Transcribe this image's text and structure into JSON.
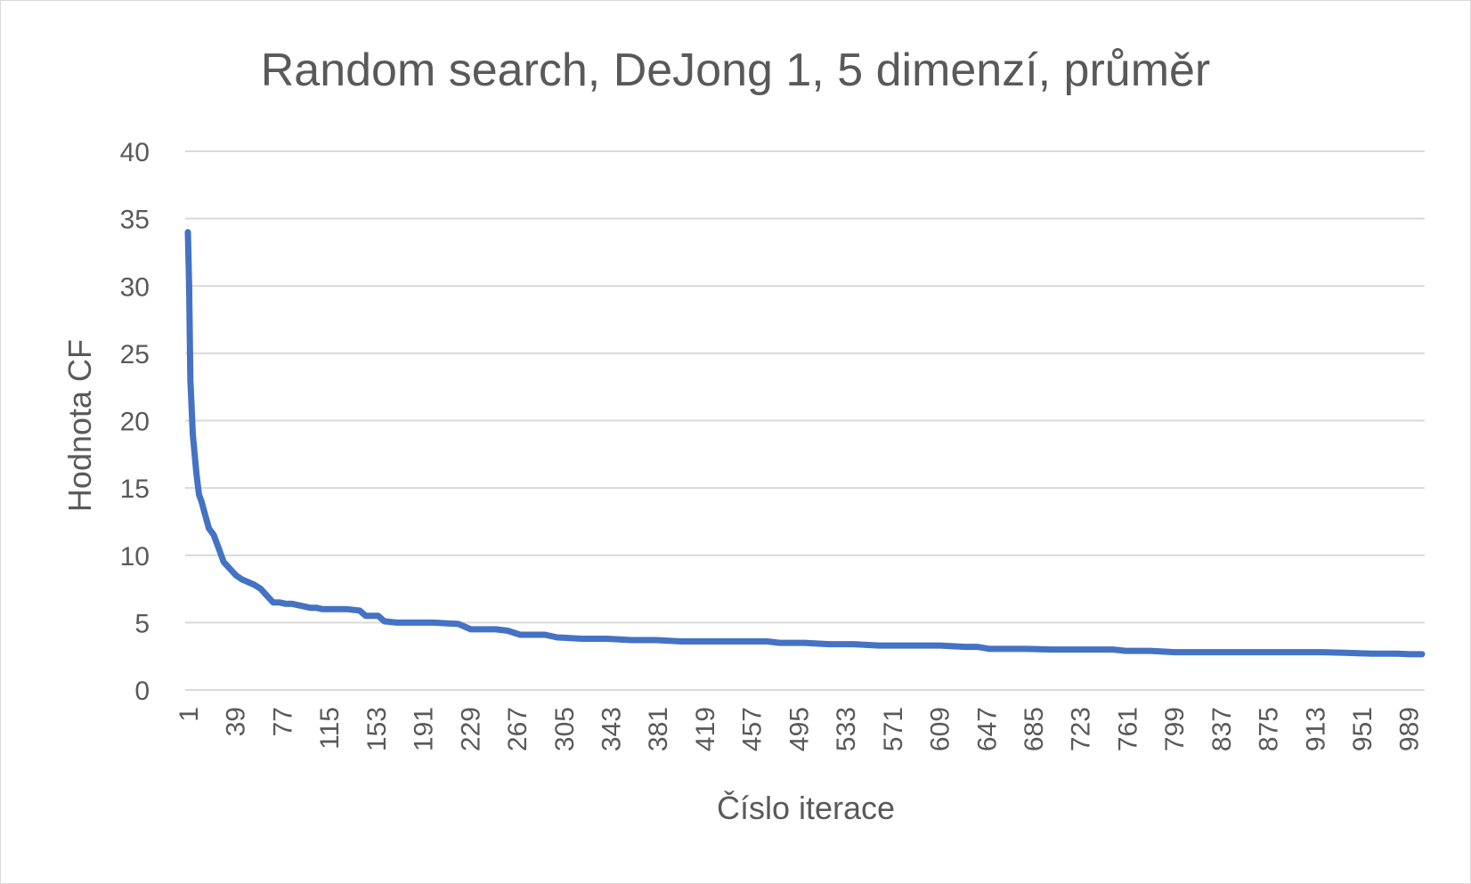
{
  "chart_data": {
    "type": "line",
    "title": "Random search, DeJong 1, 5 dimenzí, průměr",
    "xlabel": "Číslo iterace",
    "ylabel": "Hodnota CF",
    "ylim": [
      0,
      40
    ],
    "y_ticks": [
      "0",
      "5",
      "10",
      "15",
      "20",
      "25",
      "30",
      "35",
      "40"
    ],
    "x_ticks": [
      "1",
      "39",
      "77",
      "115",
      "153",
      "191",
      "229",
      "267",
      "305",
      "343",
      "381",
      "419",
      "457",
      "495",
      "533",
      "571",
      "609",
      "647",
      "685",
      "723",
      "761",
      "799",
      "837",
      "875",
      "913",
      "951",
      "989"
    ],
    "xlim": [
      1,
      1000
    ],
    "grid": true,
    "legend": "none",
    "series_color": "#4472c4",
    "series": [
      {
        "x": [
          1,
          2,
          3,
          4,
          5,
          6,
          8,
          10,
          12,
          15,
          18,
          22,
          26,
          30,
          35,
          40,
          45,
          50,
          55,
          60,
          65,
          70,
          75,
          80,
          85,
          95,
          100,
          105,
          110,
          115,
          120,
          130,
          140,
          145,
          150,
          155,
          160,
          170,
          180,
          200,
          220,
          230,
          250,
          260,
          270,
          280,
          290,
          300,
          320,
          340,
          360,
          380,
          400,
          420,
          450,
          470,
          480,
          500,
          520,
          540,
          560,
          580,
          610,
          630,
          640,
          650,
          680,
          700,
          720,
          740,
          750,
          760,
          780,
          800,
          820,
          850,
          880,
          900,
          920,
          940,
          960,
          980,
          990,
          1000
        ],
        "values": [
          34,
          30,
          23,
          21,
          19,
          18,
          16,
          14.5,
          14,
          13,
          12,
          11.5,
          10.5,
          9.5,
          9,
          8.5,
          8.2,
          8,
          7.8,
          7.5,
          7,
          6.5,
          6.5,
          6.4,
          6.4,
          6.2,
          6.1,
          6.1,
          6,
          6,
          6,
          6,
          5.9,
          5.5,
          5.5,
          5.5,
          5.1,
          5,
          5,
          5,
          4.9,
          4.5,
          4.5,
          4.4,
          4.1,
          4.1,
          4.1,
          3.9,
          3.8,
          3.8,
          3.7,
          3.7,
          3.6,
          3.6,
          3.6,
          3.6,
          3.5,
          3.5,
          3.4,
          3.4,
          3.3,
          3.3,
          3.3,
          3.2,
          3.2,
          3.05,
          3.05,
          3.0,
          3.0,
          3.0,
          3.0,
          2.9,
          2.9,
          2.8,
          2.8,
          2.8,
          2.8,
          2.8,
          2.8,
          2.75,
          2.7,
          2.7,
          2.65,
          2.65
        ]
      }
    ]
  }
}
